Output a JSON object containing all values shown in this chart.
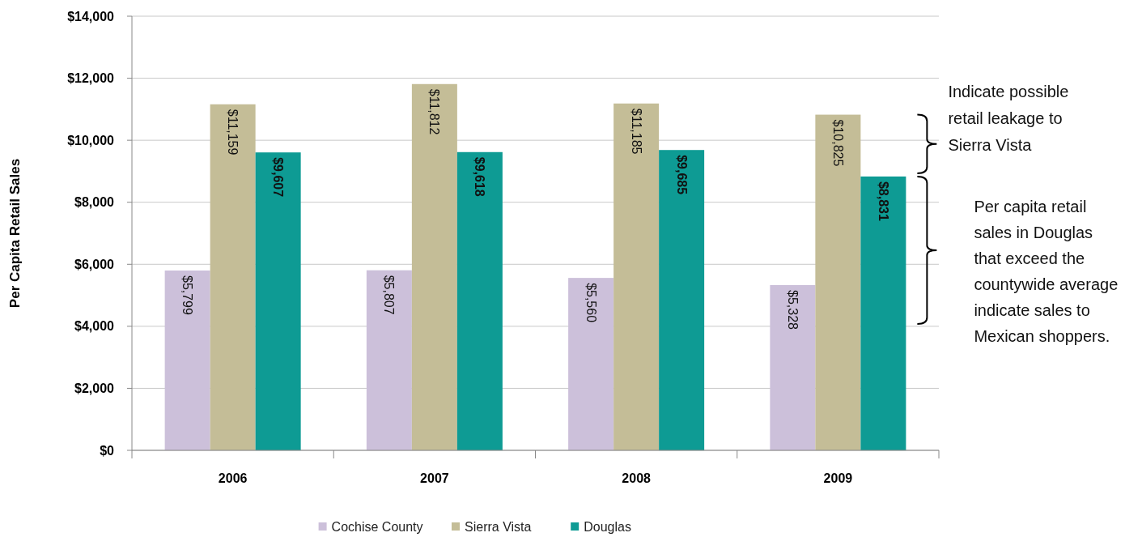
{
  "chart_data": {
    "type": "bar",
    "ylabel": "Per Capita Retail Sales",
    "categories": [
      "2006",
      "2007",
      "2008",
      "2009"
    ],
    "series": [
      {
        "name": "Cochise County",
        "color": "#ccc0da",
        "values": [
          5799,
          5807,
          5560,
          5328
        ],
        "value_labels": [
          "$5,799",
          "$5,807",
          "$5,560",
          "$5,328"
        ]
      },
      {
        "name": "Sierra Vista",
        "color": "#c4bd97",
        "values": [
          11159,
          11812,
          11185,
          10825
        ],
        "value_labels": [
          "$11,159",
          "$11,812",
          "$11,185",
          "$10,825"
        ]
      },
      {
        "name": "Douglas",
        "color": "#0e9b94",
        "values": [
          9607,
          9618,
          9685,
          8831
        ],
        "value_labels": [
          "$9,607",
          "$9,618",
          "$9,685",
          "$8,831"
        ]
      }
    ],
    "ylim": [
      0,
      14000
    ],
    "yticks": [
      {
        "value": 0,
        "label": "$0"
      },
      {
        "value": 2000,
        "label": "$2,000"
      },
      {
        "value": 4000,
        "label": "$4,000"
      },
      {
        "value": 6000,
        "label": "$6,000"
      },
      {
        "value": 8000,
        "label": "$8,000"
      },
      {
        "value": 10000,
        "label": "$10,000"
      },
      {
        "value": 12000,
        "label": "$12,000"
      },
      {
        "value": 14000,
        "label": "$14,000"
      }
    ],
    "grid": "y",
    "legend": "bottom",
    "annotations": [
      "Indicate possible retail leakage to Sierra Vista",
      "Per capita retail sales in Douglas that exceed the countywide average indicate sales to Mexican shoppers."
    ]
  }
}
